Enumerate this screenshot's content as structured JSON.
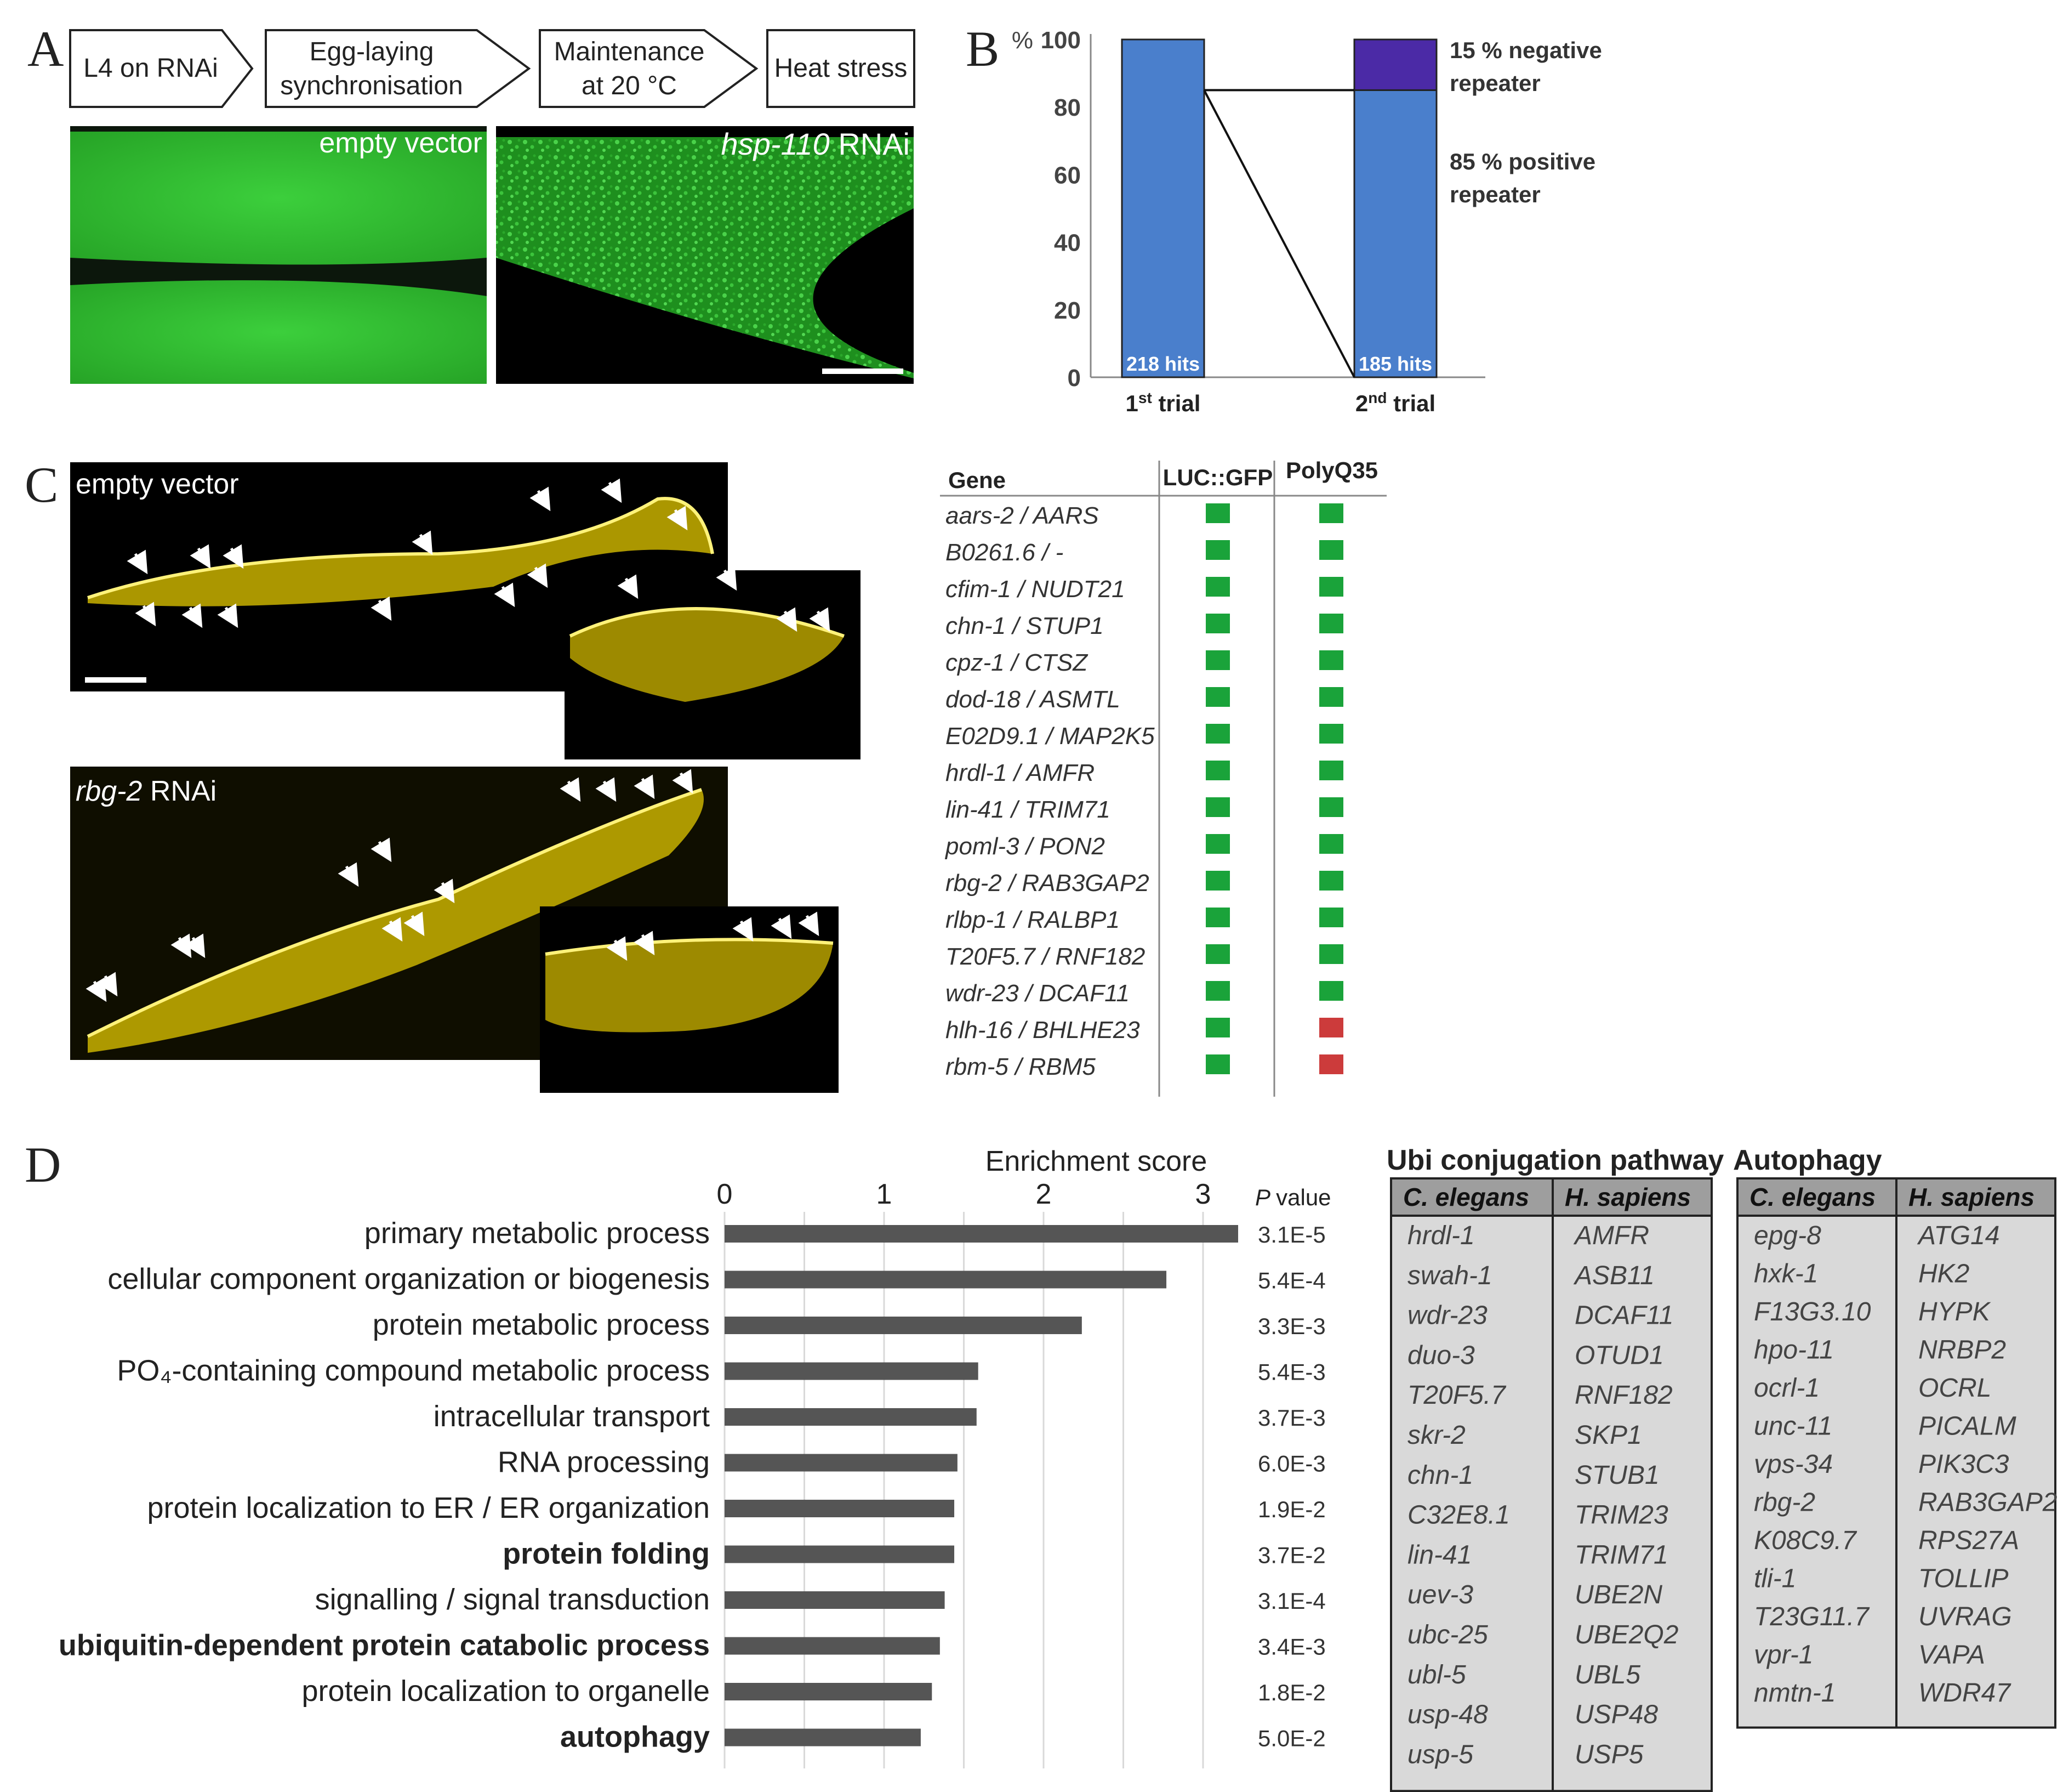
{
  "panel_letters": {
    "a": "A",
    "b": "B",
    "c": "C",
    "d": "D"
  },
  "panelA": {
    "steps": [
      "L4 on RNAi",
      [
        "Egg-laying",
        "synchronisation"
      ],
      [
        "Maintenance",
        "at 20 °C"
      ],
      "Heat stress"
    ],
    "image_left_label": "empty vector",
    "image_right_label_gene": "hsp-110",
    "image_right_label_suffix": " RNAi",
    "colors": {
      "gfp_bright": "#2fc12f",
      "gfp_dark": "#0f2a0f"
    }
  },
  "panelB": {
    "chart_data": {
      "type": "bar",
      "title": "",
      "ylabel": "%",
      "ylim": [
        0,
        100
      ],
      "yticks": [
        0,
        20,
        40,
        60,
        80,
        100
      ],
      "categories": [
        "1st trial",
        "2nd trial"
      ],
      "series": [
        {
          "name": "positive",
          "values": [
            100,
            85
          ],
          "color": "#4a7fcc"
        },
        {
          "name": "15 % negative repeater",
          "values": [
            0,
            15
          ],
          "color": "#4b2aa6"
        }
      ],
      "bar_labels": [
        "218 hits",
        "185 hits"
      ],
      "category_main": [
        "1",
        "2"
      ],
      "category_sup": [
        "st",
        "nd"
      ],
      "category_tail": [
        " trial",
        " trial"
      ],
      "annotations": [
        {
          "lines": [
            "15 % negative",
            "repeater"
          ]
        },
        {
          "lines": [
            "85 % positive",
            "repeater"
          ]
        }
      ]
    }
  },
  "panelC": {
    "top_label": "empty vector",
    "bottom_label_gene": "rbg-2",
    "bottom_label_suffix": " RNAi",
    "table": {
      "headers": [
        "Gene",
        "LUC::GFP",
        "PolyQ35"
      ],
      "rows": [
        {
          "gene": "aars-2 / AARS",
          "luc": "pos",
          "polyq": "pos"
        },
        {
          "gene": "B0261.6 /  -",
          "luc": "pos",
          "polyq": "pos"
        },
        {
          "gene": "cfim-1 / NUDT21",
          "luc": "pos",
          "polyq": "pos"
        },
        {
          "gene": "chn-1 / STUP1",
          "luc": "pos",
          "polyq": "pos"
        },
        {
          "gene": "cpz-1 / CTSZ",
          "luc": "pos",
          "polyq": "pos"
        },
        {
          "gene": "dod-18 / ASMTL",
          "luc": "pos",
          "polyq": "pos"
        },
        {
          "gene": "E02D9.1 / MAP2K5",
          "luc": "pos",
          "polyq": "pos"
        },
        {
          "gene": "hrdl-1 / AMFR",
          "luc": "pos",
          "polyq": "pos"
        },
        {
          "gene": "lin-41 / TRIM71",
          "luc": "pos",
          "polyq": "pos"
        },
        {
          "gene": "poml-3 / PON2",
          "luc": "pos",
          "polyq": "pos"
        },
        {
          "gene": "rbg-2 / RAB3GAP2",
          "luc": "pos",
          "polyq": "pos"
        },
        {
          "gene": "rlbp-1 / RALBP1",
          "luc": "pos",
          "polyq": "pos"
        },
        {
          "gene": "T20F5.7 / RNF182",
          "luc": "pos",
          "polyq": "pos"
        },
        {
          "gene": "wdr-23 / DCAF11",
          "luc": "pos",
          "polyq": "pos"
        },
        {
          "gene": "hlh-16 / BHLHE23",
          "luc": "pos",
          "polyq": "neg"
        },
        {
          "gene": "rbm-5 / RBM5",
          "luc": "pos",
          "polyq": "neg"
        }
      ],
      "colors": {
        "pos": "#1aa33a",
        "neg": "#cc3b3b"
      }
    }
  },
  "panelD": {
    "chart_data": {
      "type": "bar",
      "orientation": "horizontal",
      "title": "Enrichment score",
      "xlim": [
        0,
        3.2
      ],
      "xticks": [
        0,
        1,
        2,
        3
      ],
      "pvalue_header": "value",
      "pvalue_header_p": "P",
      "categories": [
        "primary metabolic process",
        "cellular component organization or biogenesis",
        "protein metabolic process",
        "PO₄-containing compound metabolic process",
        "intracellular transport",
        "RNA processing",
        "protein localization to ER / ER organization",
        "protein folding",
        "signalling / signal transduction",
        "ubiquitin-dependent protein catabolic process",
        "protein localization to organelle",
        "autophagy"
      ],
      "bold": [
        false,
        false,
        false,
        false,
        false,
        false,
        false,
        true,
        false,
        true,
        false,
        true
      ],
      "values": [
        3.22,
        2.77,
        2.24,
        1.59,
        1.58,
        1.46,
        1.44,
        1.44,
        1.38,
        1.35,
        1.3,
        1.23
      ],
      "p_values": [
        "3.1E-5",
        "5.4E-4",
        "3.3E-3",
        "5.4E-3",
        "3.7E-3",
        "6.0E-3",
        "1.9E-2",
        "3.7E-2",
        "3.1E-4",
        "3.4E-3",
        "1.8E-2",
        "5.0E-2"
      ],
      "bar_color": "#555555"
    },
    "ubi": {
      "title": "Ubi conjugation pathway",
      "headers": [
        "C. elegans",
        "H. sapiens"
      ],
      "rows": [
        [
          "hrdl-1",
          "AMFR"
        ],
        [
          "swah-1",
          "ASB11"
        ],
        [
          "wdr-23",
          "DCAF11"
        ],
        [
          "duo-3",
          "OTUD1"
        ],
        [
          "T20F5.7",
          "RNF182"
        ],
        [
          "skr-2",
          "SKP1"
        ],
        [
          "chn-1",
          "STUB1"
        ],
        [
          "C32E8.1",
          "TRIM23"
        ],
        [
          "lin-41",
          "TRIM71"
        ],
        [
          "uev-3",
          "UBE2N"
        ],
        [
          "ubc-25",
          "UBE2Q2"
        ],
        [
          "ubl-5",
          "UBL5"
        ],
        [
          "usp-48",
          "USP48"
        ],
        [
          "usp-5",
          "USP5"
        ]
      ]
    },
    "autophagy": {
      "title": "Autophagy",
      "headers": [
        "C. elegans",
        "H. sapiens"
      ],
      "rows": [
        [
          "epg-8",
          "ATG14"
        ],
        [
          "hxk-1",
          "HK2"
        ],
        [
          "F13G3.10",
          "HYPK"
        ],
        [
          "hpo-11",
          "NRBP2"
        ],
        [
          "ocrl-1",
          "OCRL"
        ],
        [
          "unc-11",
          "PICALM"
        ],
        [
          "vps-34",
          "PIK3C3"
        ],
        [
          "rbg-2",
          "RAB3GAP2"
        ],
        [
          "K08C9.7",
          "RPS27A"
        ],
        [
          "tli-1",
          "TOLLIP"
        ],
        [
          "T23G11.7",
          "UVRAG"
        ],
        [
          "vpr-1",
          "VAPA"
        ],
        [
          "nmtn-1",
          "WDR47"
        ]
      ]
    }
  }
}
